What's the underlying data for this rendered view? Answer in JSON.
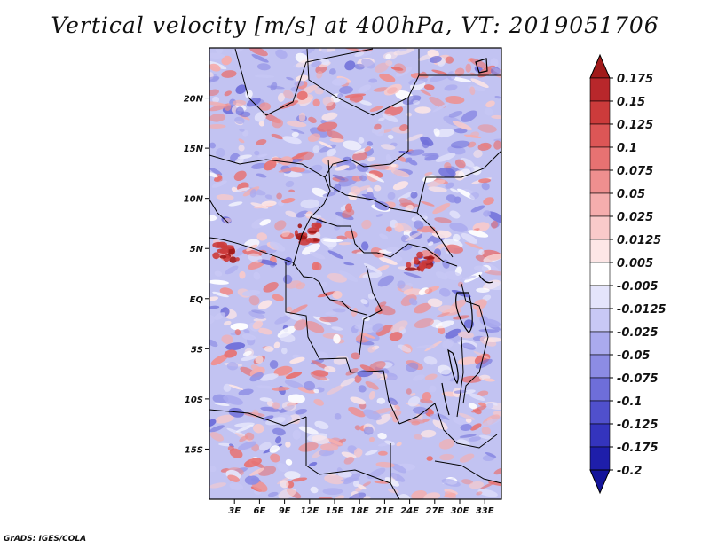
{
  "title": "Vertical velocity [m/s] at 400hPa, VT: 2019051706",
  "footer": "GrADS: IGES/COLA",
  "chart_data": {
    "type": "heatmap",
    "title": "Vertical velocity [m/s] at 400hPa, VT: 2019051706",
    "variable": "Vertical velocity",
    "units": "m/s",
    "level": "400hPa",
    "valid_time": "2019051706",
    "x_ticks": [
      {
        "value": 3,
        "label": "3E"
      },
      {
        "value": 6,
        "label": "6E"
      },
      {
        "value": 9,
        "label": "9E"
      },
      {
        "value": 12,
        "label": "12E"
      },
      {
        "value": 15,
        "label": "15E"
      },
      {
        "value": 18,
        "label": "18E"
      },
      {
        "value": 21,
        "label": "21E"
      },
      {
        "value": 24,
        "label": "24E"
      },
      {
        "value": 27,
        "label": "27E"
      },
      {
        "value": 30,
        "label": "30E"
      },
      {
        "value": 33,
        "label": "33E"
      }
    ],
    "y_ticks": [
      {
        "value": 20,
        "label": "20N"
      },
      {
        "value": 15,
        "label": "15N"
      },
      {
        "value": 10,
        "label": "10N"
      },
      {
        "value": 5,
        "label": "5N"
      },
      {
        "value": 0,
        "label": "EQ"
      },
      {
        "value": -5,
        "label": "5S"
      },
      {
        "value": -10,
        "label": "10S"
      },
      {
        "value": -15,
        "label": "15S"
      }
    ],
    "xlim": [
      0,
      35
    ],
    "ylim": [
      -20,
      25
    ],
    "colorbar": {
      "labels": [
        "0.175",
        "0.15",
        "0.125",
        "0.1",
        "0.075",
        "0.05",
        "0.025",
        "0.0125",
        "0.005",
        "-0.005",
        "-0.0125",
        "-0.025",
        "-0.05",
        "-0.075",
        "-0.1",
        "-0.125",
        "-0.175",
        "-0.2"
      ],
      "colors": [
        "#a11a1a",
        "#b8272b",
        "#cc3b3b",
        "#dc5656",
        "#e77272",
        "#ef8f8f",
        "#f5adad",
        "#f9caca",
        "#fde6e6",
        "#ffffff",
        "#e4e4fb",
        "#c8c8f5",
        "#aaaaee",
        "#8c8ce4",
        "#6e6ed9",
        "#5050cc",
        "#3434bd",
        "#1e1eaa",
        "#14149a"
      ],
      "extend": "both"
    },
    "field_features": [
      {
        "description": "Strong ascent (red) cores",
        "lon": 12,
        "lat": 6.5,
        "value": 0.175
      },
      {
        "description": "Strong ascent (red) cores",
        "lon": 25,
        "lat": 3.5,
        "value": 0.175
      },
      {
        "description": "Strong ascent cluster",
        "lon": 2,
        "lat": 4.5,
        "value": 0.15
      }
    ]
  }
}
